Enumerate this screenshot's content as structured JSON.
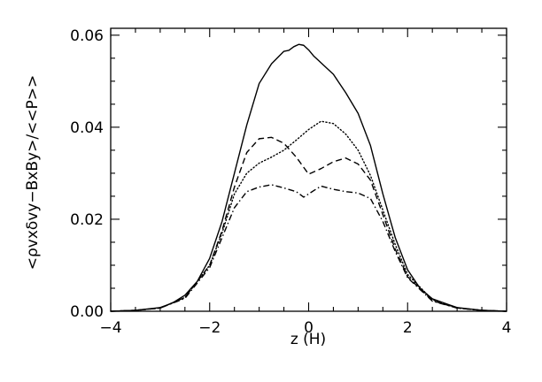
{
  "chart_data": {
    "type": "line",
    "title": "",
    "xlabel": "z (H)",
    "ylabel": "<ρvxδvy−BxBy>/<<P>>",
    "xlim": [
      -4,
      4
    ],
    "ylim": [
      0,
      0.0615
    ],
    "xticks": [
      -4,
      -2,
      0,
      2,
      4
    ],
    "xtick_labels": [
      "−4",
      "−2",
      "0",
      "2",
      "4"
    ],
    "yticks": [
      0,
      0.02,
      0.04,
      0.06
    ],
    "ytick_labels": [
      "0.00",
      "0.02",
      "0.04",
      "0.06"
    ],
    "grid": false,
    "legend": "none",
    "series": [
      {
        "style": "solid",
        "x": [
          -4.0,
          -3.5,
          -3.0,
          -2.75,
          -2.5,
          -2.25,
          -2.0,
          -1.75,
          -1.5,
          -1.25,
          -1.0,
          -0.75,
          -0.5,
          -0.4,
          -0.3,
          -0.2,
          -0.1,
          0.0,
          0.1,
          0.2,
          0.3,
          0.5,
          0.75,
          1.0,
          1.25,
          1.5,
          1.75,
          2.0,
          2.25,
          2.5,
          3.0,
          3.5,
          4.0
        ],
        "y": [
          0.0,
          0.0002,
          0.0008,
          0.0018,
          0.0035,
          0.0065,
          0.0115,
          0.0195,
          0.03,
          0.0405,
          0.0495,
          0.0538,
          0.0565,
          0.0567,
          0.0575,
          0.058,
          0.0578,
          0.0568,
          0.0555,
          0.0545,
          0.0535,
          0.0515,
          0.0475,
          0.043,
          0.036,
          0.0255,
          0.016,
          0.009,
          0.005,
          0.0027,
          0.0008,
          0.0002,
          0.0
        ]
      },
      {
        "style": "dotted",
        "x": [
          -4.0,
          -3.5,
          -3.0,
          -2.5,
          -2.0,
          -1.75,
          -1.5,
          -1.25,
          -1.0,
          -0.75,
          -0.5,
          -0.25,
          0.0,
          0.25,
          0.5,
          0.75,
          1.0,
          1.25,
          1.5,
          1.75,
          2.0,
          2.5,
          3.0,
          3.5,
          4.0
        ],
        "y": [
          0.0,
          0.0002,
          0.0007,
          0.003,
          0.01,
          0.017,
          0.0255,
          0.03,
          0.0322,
          0.0335,
          0.035,
          0.0372,
          0.0395,
          0.0413,
          0.0408,
          0.0385,
          0.035,
          0.0295,
          0.022,
          0.0145,
          0.008,
          0.0025,
          0.0007,
          0.0002,
          0.0
        ]
      },
      {
        "style": "dashed",
        "x": [
          -4.0,
          -3.5,
          -3.0,
          -2.5,
          -2.0,
          -1.75,
          -1.5,
          -1.25,
          -1.0,
          -0.75,
          -0.5,
          -0.25,
          0.0,
          0.25,
          0.5,
          0.75,
          1.0,
          1.25,
          1.5,
          1.75,
          2.0,
          2.5,
          3.0,
          3.5,
          4.0
        ],
        "y": [
          0.0,
          0.0002,
          0.0007,
          0.003,
          0.01,
          0.0175,
          0.027,
          0.0345,
          0.0375,
          0.0378,
          0.0365,
          0.0335,
          0.0298,
          0.031,
          0.0325,
          0.0333,
          0.032,
          0.0285,
          0.021,
          0.0135,
          0.0075,
          0.0023,
          0.0007,
          0.0002,
          0.0
        ]
      },
      {
        "style": "dashdot",
        "x": [
          -4.0,
          -3.5,
          -3.0,
          -2.5,
          -2.0,
          -1.75,
          -1.5,
          -1.25,
          -1.0,
          -0.75,
          -0.5,
          -0.25,
          -0.1,
          0.0,
          0.1,
          0.25,
          0.5,
          0.75,
          1.0,
          1.25,
          1.5,
          1.75,
          2.0,
          2.5,
          3.0,
          3.5,
          4.0
        ],
        "y": [
          0.0,
          0.0002,
          0.0007,
          0.0028,
          0.0095,
          0.016,
          0.0225,
          0.026,
          0.027,
          0.0275,
          0.0268,
          0.026,
          0.0248,
          0.0255,
          0.0262,
          0.0272,
          0.0265,
          0.026,
          0.0257,
          0.0245,
          0.0195,
          0.013,
          0.0073,
          0.0022,
          0.0007,
          0.0002,
          0.0
        ]
      }
    ]
  }
}
